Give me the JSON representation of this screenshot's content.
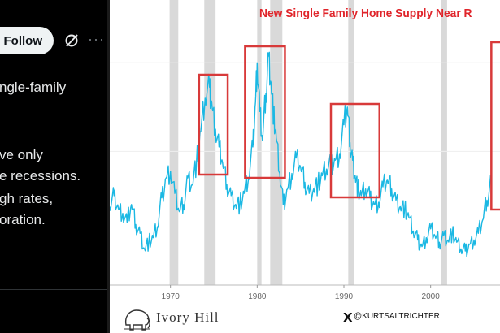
{
  "tweet": {
    "follow_label": "Follow",
    "more_label": "···",
    "text_lines": [
      "ngle-family",
      "ve only",
      "e recessions.",
      "gh rates,",
      "oration."
    ]
  },
  "chart_image": {
    "title": "New Single Family Home Supply Near R",
    "brand": "Ivory Hill",
    "handle": "@KURTSALTRICHTER",
    "x_icon": "X"
  },
  "colors": {
    "title": "#e0252b",
    "series": "#1bb8e3",
    "recession_band": "#d9d9d9",
    "highlight_box": "#d83a3a"
  },
  "chart_data": {
    "type": "line",
    "title": "New Single Family Home Supply Near R",
    "x_ticks": [
      "1970",
      "1980",
      "1990",
      "2000"
    ],
    "xlim": [
      1963,
      2008
    ],
    "ylim": [
      2,
      13
    ],
    "grid": "horizontal",
    "recessions": [
      [
        1969.9,
        1970.9
      ],
      [
        1973.9,
        1975.2
      ],
      [
        1980.0,
        1980.5
      ],
      [
        1981.5,
        1982.9
      ],
      [
        1990.5,
        1991.2
      ],
      [
        2001.2,
        2001.9
      ]
    ],
    "highlight_boxes": [
      [
        1973.3,
        1976.6
      ],
      [
        1978.6,
        1983.2
      ],
      [
        1988.5,
        1994.1
      ],
      [
        2007.0,
        2010.0
      ]
    ],
    "series": [
      {
        "x": [
          1963.0,
          1963.5,
          1964.0,
          1964.5,
          1965.0,
          1965.5,
          1966.0,
          1966.5,
          1967.0,
          1967.5,
          1968.0,
          1968.5,
          1969.0,
          1969.5,
          1970.0,
          1970.5,
          1971.0,
          1971.5,
          1972.0,
          1972.5,
          1973.0,
          1973.5,
          1974.0,
          1974.5,
          1974.8,
          1975.2,
          1975.6,
          1976.0,
          1976.5,
          1977.0,
          1977.5,
          1978.0,
          1978.5,
          1979.0,
          1979.5,
          1979.8,
          1980.0,
          1980.3,
          1980.6,
          1981.0,
          1981.3,
          1981.6,
          1981.9,
          1982.2,
          1982.6,
          1983.0,
          1983.5,
          1984.0,
          1984.5,
          1985.0,
          1985.5,
          1986.0,
          1986.5,
          1987.0,
          1987.5,
          1988.0,
          1988.5,
          1989.0,
          1989.5,
          1990.0,
          1990.4,
          1990.7,
          1991.0,
          1991.3,
          1991.6,
          1992.0,
          1992.5,
          1993.0,
          1993.5,
          1994.0,
          1994.5,
          1995.0,
          1995.5,
          1996.0,
          1996.5,
          1997.0,
          1997.5,
          1998.0,
          1998.5,
          1999.0,
          1999.5,
          2000.0,
          2000.5,
          2001.0,
          2001.5,
          2002.0,
          2002.5,
          2003.0,
          2003.5,
          2004.0,
          2004.5,
          2005.0,
          2005.5,
          2006.0,
          2006.5,
          2007.0
        ],
        "y": [
          5.5,
          6.0,
          5.4,
          5.2,
          4.8,
          5.6,
          4.7,
          4.3,
          3.6,
          3.9,
          4.1,
          4.6,
          5.9,
          6.8,
          7.1,
          6.1,
          5.3,
          5.6,
          6.8,
          6.5,
          7.5,
          8.9,
          10.4,
          10.9,
          10.0,
          9.0,
          8.2,
          7.5,
          6.5,
          6.0,
          5.6,
          5.6,
          6.1,
          6.8,
          8.2,
          10.2,
          12.0,
          9.8,
          8.5,
          10.6,
          12.3,
          11.1,
          9.6,
          8.6,
          7.0,
          5.6,
          6.3,
          7.0,
          7.7,
          7.3,
          6.6,
          6.1,
          6.3,
          6.5,
          6.9,
          7.2,
          7.4,
          7.6,
          7.9,
          9.2,
          10.0,
          8.4,
          7.6,
          6.9,
          6.3,
          6.0,
          6.3,
          5.9,
          5.6,
          5.7,
          6.4,
          6.7,
          6.3,
          5.8,
          5.5,
          5.4,
          5.0,
          4.4,
          4.0,
          3.7,
          4.1,
          4.5,
          4.2,
          3.9,
          4.2,
          4.0,
          4.3,
          3.9,
          3.6,
          3.5,
          3.8,
          4.0,
          4.3,
          4.9,
          5.8,
          6.8
        ]
      }
    ]
  }
}
